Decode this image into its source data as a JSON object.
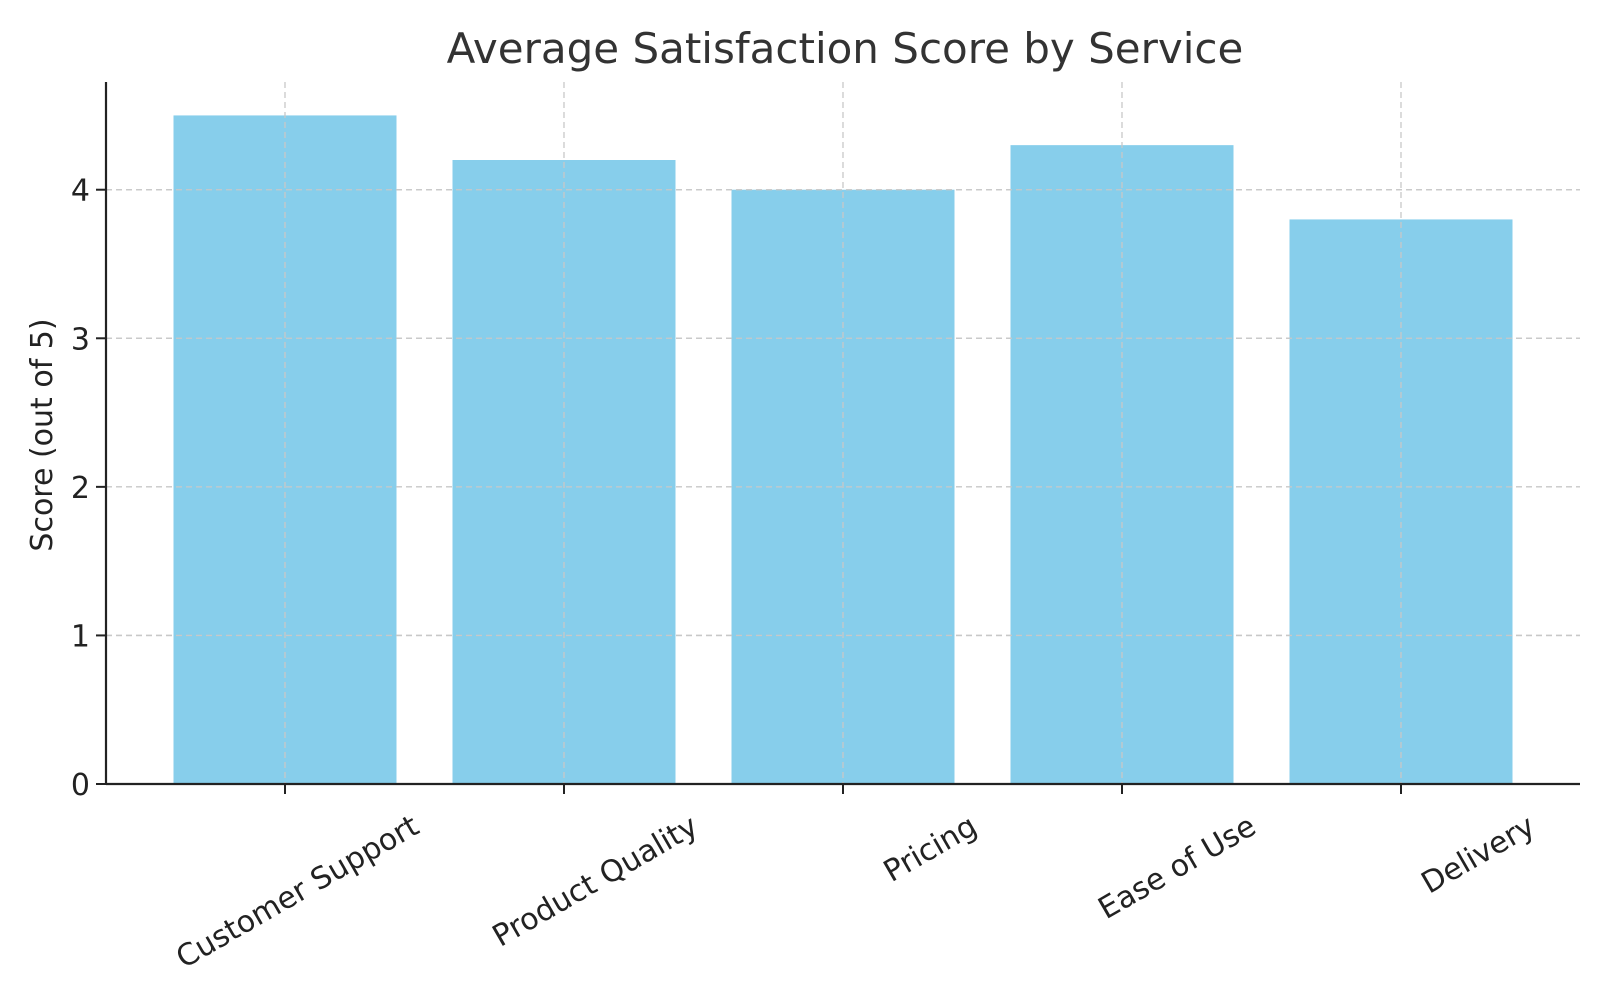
{
  "chart_data": {
    "type": "bar",
    "title": "Average Satisfaction Score by Service",
    "xlabel": "",
    "ylabel": "Score (out of 5)",
    "categories": [
      "Customer Support",
      "Product Quality",
      "Pricing",
      "Ease of Use",
      "Delivery"
    ],
    "values": [
      4.5,
      4.2,
      4.0,
      4.3,
      3.8
    ],
    "ylim": [
      0,
      4.725
    ],
    "yticks": [
      0,
      1,
      2,
      3,
      4
    ],
    "ytick_labels": [
      "0",
      "1",
      "2",
      "3",
      "4"
    ],
    "grid": true,
    "grid_style": "dashed",
    "bar_color": "#87CEEB",
    "axis_color": "#222222",
    "grid_color": "#c8c8c8"
  }
}
